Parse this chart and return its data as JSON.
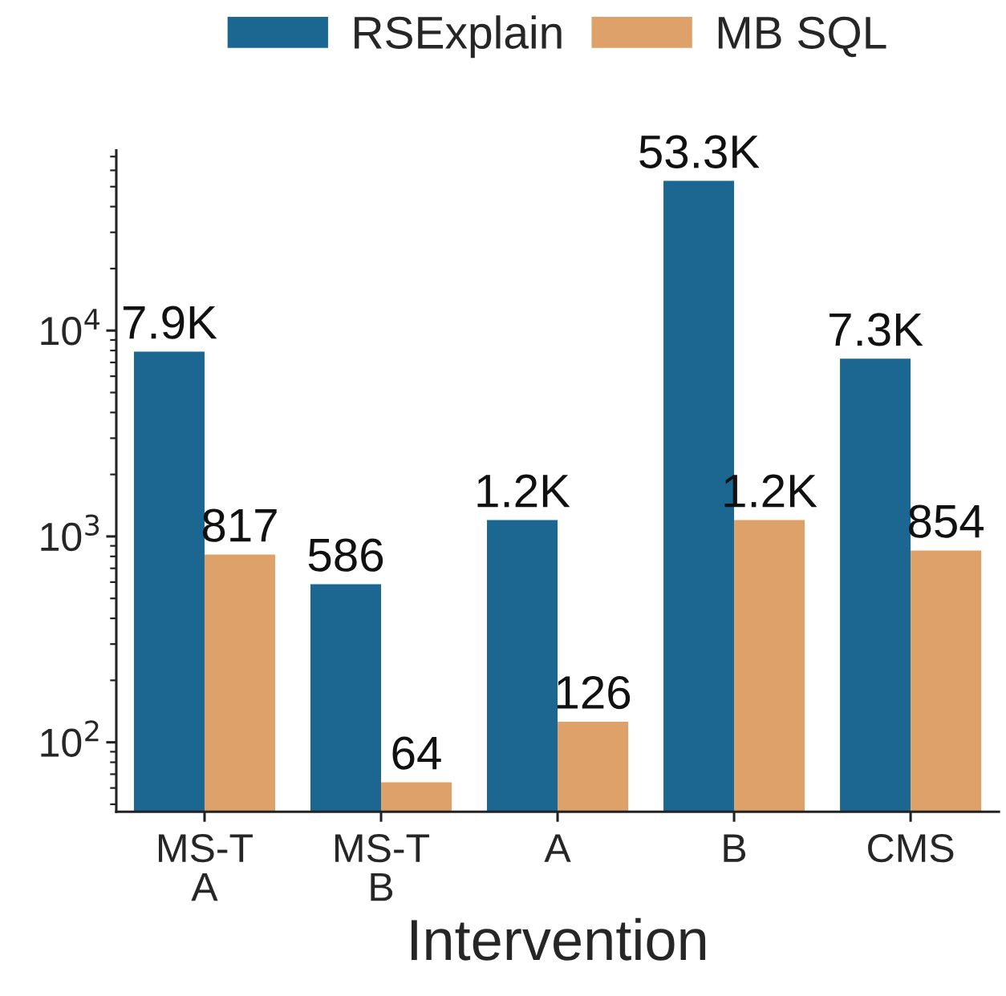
{
  "chart_data": {
    "type": "bar",
    "xlabel": "Intervention",
    "categories": [
      "MS-T\nA",
      "MS-T\nB",
      "A",
      "B",
      "CMS"
    ],
    "series": [
      {
        "name": "RSExplain",
        "color": "#1b6792",
        "values": [
          7900,
          586,
          1200,
          53300,
          7300
        ],
        "value_labels": [
          "7.9K",
          "586",
          "1.2K",
          "53.3K",
          "7.3K"
        ]
      },
      {
        "name": "MB SQL",
        "color": "#dea16a",
        "values": [
          817,
          64,
          126,
          1200,
          854
        ],
        "value_labels": [
          "817",
          "64",
          "126",
          "1.2K",
          "854"
        ]
      }
    ],
    "log": true,
    "ylim": [
      46,
      75000
    ],
    "yticks": [
      {
        "value": 100,
        "label": "10$^{2}$"
      },
      {
        "value": 1000,
        "label": "10$^{3}$"
      },
      {
        "value": 10000,
        "label": "10$^{4}$"
      }
    ],
    "legend": "top",
    "grid": false
  }
}
